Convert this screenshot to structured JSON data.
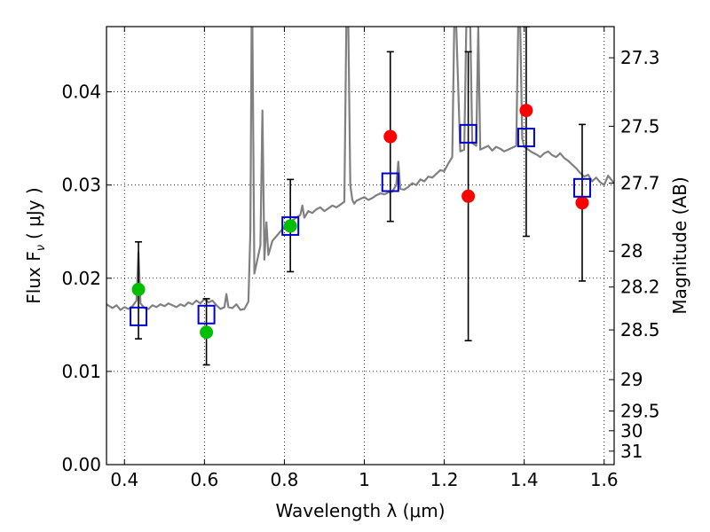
{
  "chart_data": {
    "type": "scatter",
    "title": "",
    "xlabel": "Wavelength  λ (μm)",
    "ylabel": "Flux  F",
    "ylabel_subscript": "ν",
    "ylabel_unit": "( μJy )",
    "y2label": "Magnitude (AB)",
    "xlim": [
      0.355,
      1.625
    ],
    "ylim": [
      0.0,
      0.047
    ],
    "grid": true,
    "x_ticks": [
      0.4,
      0.6,
      0.8,
      1.0,
      1.2,
      1.4,
      1.6
    ],
    "x_tick_labels": [
      "0.4",
      "0.6",
      "0.8",
      "1",
      "1.2",
      "1.4",
      "1.6"
    ],
    "y_ticks": [
      0.0,
      0.01,
      0.02,
      0.03,
      0.04
    ],
    "y_tick_labels": [
      "0.00",
      "0.01",
      "0.02",
      "0.03",
      "0.04"
    ],
    "y2_ticks": [
      {
        "label": "27.3",
        "value": 27.3
      },
      {
        "label": "27.5",
        "value": 27.5
      },
      {
        "label": "27.7",
        "value": 27.7
      },
      {
        "label": "28",
        "value": 28.0
      },
      {
        "label": "28.2",
        "value": 28.2
      },
      {
        "label": "28.5",
        "value": 28.5
      },
      {
        "label": "29",
        "value": 29.0
      },
      {
        "label": "29.5",
        "value": 29.5
      },
      {
        "label": "30",
        "value": 30.0
      },
      {
        "label": "31",
        "value": 31.0
      }
    ],
    "model_spectrum": {
      "color": "#808080",
      "x": [
        0.355,
        0.37,
        0.38,
        0.39,
        0.4,
        0.41,
        0.42,
        0.43,
        0.435,
        0.44,
        0.45,
        0.46,
        0.47,
        0.48,
        0.49,
        0.5,
        0.51,
        0.52,
        0.53,
        0.54,
        0.55,
        0.56,
        0.57,
        0.58,
        0.59,
        0.6,
        0.61,
        0.62,
        0.63,
        0.64,
        0.65,
        0.655,
        0.66,
        0.67,
        0.68,
        0.69,
        0.7,
        0.71,
        0.715,
        0.718,
        0.72,
        0.725,
        0.73,
        0.74,
        0.745,
        0.75,
        0.755,
        0.76,
        0.77,
        0.78,
        0.79,
        0.8,
        0.81,
        0.82,
        0.83,
        0.84,
        0.845,
        0.85,
        0.86,
        0.87,
        0.88,
        0.89,
        0.9,
        0.91,
        0.92,
        0.93,
        0.94,
        0.95,
        0.955,
        0.96,
        0.965,
        0.97,
        0.975,
        0.98,
        0.99,
        1.0,
        1.01,
        1.02,
        1.03,
        1.04,
        1.05,
        1.06,
        1.07,
        1.08,
        1.085,
        1.09,
        1.1,
        1.11,
        1.12,
        1.13,
        1.14,
        1.15,
        1.16,
        1.17,
        1.18,
        1.19,
        1.2,
        1.21,
        1.22,
        1.225,
        1.23,
        1.24,
        1.25,
        1.255,
        1.26,
        1.265,
        1.27,
        1.28,
        1.285,
        1.29,
        1.3,
        1.31,
        1.32,
        1.33,
        1.34,
        1.35,
        1.36,
        1.37,
        1.38,
        1.385,
        1.39,
        1.395,
        1.4,
        1.41,
        1.42,
        1.43,
        1.44,
        1.45,
        1.46,
        1.47,
        1.48,
        1.49,
        1.5,
        1.51,
        1.52,
        1.53,
        1.54,
        1.55,
        1.56,
        1.57,
        1.58,
        1.59,
        1.6,
        1.61,
        1.625
      ],
      "y": [
        0.0172,
        0.0168,
        0.0171,
        0.0166,
        0.0169,
        0.0167,
        0.017,
        0.0176,
        0.0228,
        0.0173,
        0.0168,
        0.0167,
        0.0171,
        0.0169,
        0.0172,
        0.017,
        0.0173,
        0.0171,
        0.0169,
        0.0172,
        0.017,
        0.0174,
        0.0172,
        0.0176,
        0.0173,
        0.0178,
        0.0174,
        0.0176,
        0.0171,
        0.0167,
        0.0169,
        0.0183,
        0.0169,
        0.0168,
        0.0172,
        0.0166,
        0.0167,
        0.0175,
        0.025,
        0.047,
        0.047,
        0.0205,
        0.0215,
        0.0235,
        0.038,
        0.022,
        0.026,
        0.0225,
        0.024,
        0.0245,
        0.025,
        0.0255,
        0.0258,
        0.0262,
        0.0265,
        0.0268,
        0.0278,
        0.0265,
        0.0272,
        0.027,
        0.0274,
        0.0276,
        0.0272,
        0.0275,
        0.0278,
        0.0276,
        0.0279,
        0.0282,
        0.047,
        0.047,
        0.03,
        0.0284,
        0.028,
        0.0283,
        0.0285,
        0.0287,
        0.0284,
        0.0286,
        0.0289,
        0.0291,
        0.029,
        0.0292,
        0.0293,
        0.03,
        0.0325,
        0.0296,
        0.0295,
        0.0298,
        0.0302,
        0.03,
        0.0306,
        0.0304,
        0.0309,
        0.0308,
        0.0312,
        0.0316,
        0.0315,
        0.0323,
        0.033,
        0.047,
        0.047,
        0.0336,
        0.0338,
        0.047,
        0.047,
        0.047,
        0.0345,
        0.0342,
        0.047,
        0.0338,
        0.034,
        0.0342,
        0.0337,
        0.0341,
        0.0339,
        0.0336,
        0.0338,
        0.034,
        0.0342,
        0.047,
        0.047,
        0.035,
        0.0341,
        0.0338,
        0.0335,
        0.0333,
        0.033,
        0.0334,
        0.0336,
        0.0332,
        0.033,
        0.0334,
        0.0329,
        0.0326,
        0.0322,
        0.0318,
        0.0313,
        0.0309,
        0.0311,
        0.0304,
        0.0308,
        0.0303,
        0.03,
        0.031,
        0.0302
      ]
    },
    "observed_points": {
      "marker": "circle",
      "points": [
        {
          "x": 0.435,
          "y": 0.0188,
          "yerr_low": 0.0135,
          "yerr_high": 0.0239,
          "color": "#00bf00"
        },
        {
          "x": 0.605,
          "y": 0.0142,
          "yerr_low": 0.0107,
          "yerr_high": 0.0178,
          "color": "#00bf00"
        },
        {
          "x": 0.815,
          "y": 0.0256,
          "yerr_low": 0.0207,
          "yerr_high": 0.0306,
          "color": "#00bf00"
        },
        {
          "x": 1.065,
          "y": 0.0352,
          "yerr_low": 0.0261,
          "yerr_high": 0.0443,
          "color": "#ff0000"
        },
        {
          "x": 1.26,
          "y": 0.0288,
          "yerr_low": 0.0133,
          "yerr_high": 0.0443,
          "color": "#ff0000"
        },
        {
          "x": 1.405,
          "y": 0.038,
          "yerr_low": 0.0245,
          "yerr_high": 0.047,
          "color": "#ff0000"
        },
        {
          "x": 1.545,
          "y": 0.0281,
          "yerr_low": 0.0197,
          "yerr_high": 0.0365,
          "color": "#ff0000"
        }
      ]
    },
    "model_points": {
      "marker": "open-square",
      "color": "#0000cc",
      "points": [
        {
          "x": 0.435,
          "y": 0.0159
        },
        {
          "x": 0.605,
          "y": 0.0161
        },
        {
          "x": 0.815,
          "y": 0.0256
        },
        {
          "x": 1.065,
          "y": 0.0303
        },
        {
          "x": 1.26,
          "y": 0.0355
        },
        {
          "x": 1.405,
          "y": 0.0351
        },
        {
          "x": 1.545,
          "y": 0.0297
        }
      ]
    }
  }
}
